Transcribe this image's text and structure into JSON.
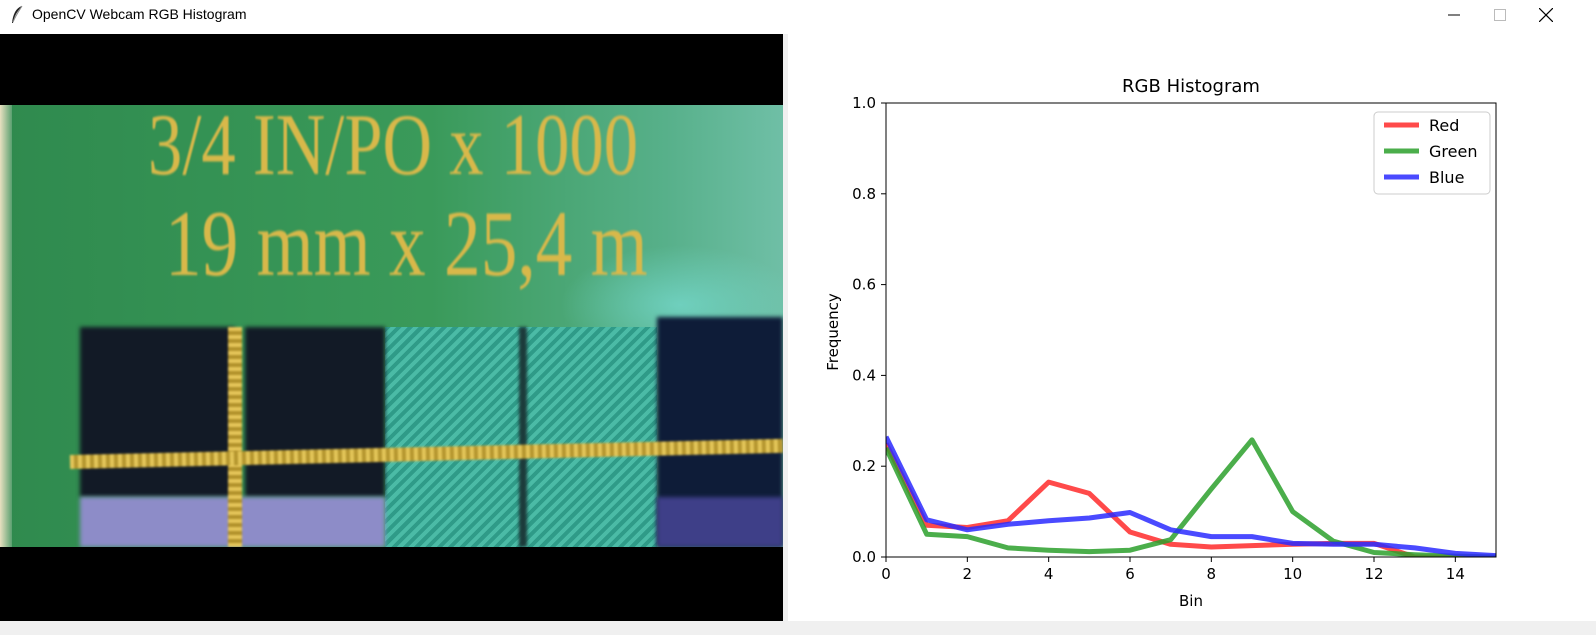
{
  "window": {
    "title": "OpenCV Webcam RGB Histogram",
    "icon": "feather-icon",
    "controls": [
      "minimize-icon",
      "maximize-icon",
      "close-icon"
    ]
  },
  "video": {
    "printed_text_line1": "3/4 IN/PO x 1000",
    "printed_text_line2": "19 mm x 25,4 m"
  },
  "chart_data": {
    "type": "line",
    "title": "RGB Histogram",
    "xlabel": "Bin",
    "ylabel": "Frequency",
    "xlim": [
      0,
      15
    ],
    "ylim": [
      0,
      1.0
    ],
    "xticks": [
      "0",
      "2",
      "4",
      "6",
      "8",
      "10",
      "12",
      "14"
    ],
    "yticks": [
      "0.0",
      "0.2",
      "0.4",
      "0.6",
      "0.8",
      "1.0"
    ],
    "legend_position": "top-right",
    "x": [
      0,
      1,
      2,
      3,
      4,
      5,
      6,
      7,
      8,
      9,
      10,
      11,
      12,
      13,
      14,
      15
    ],
    "series": [
      {
        "name": "Red",
        "color": "#ff2a2a",
        "values": [
          0.25,
          0.07,
          0.065,
          0.08,
          0.165,
          0.14,
          0.055,
          0.028,
          0.022,
          0.025,
          0.028,
          0.03,
          0.03,
          0.0,
          0.0,
          0.0
        ]
      },
      {
        "name": "Green",
        "color": "#2ca02c",
        "values": [
          0.24,
          0.05,
          0.045,
          0.02,
          0.015,
          0.012,
          0.015,
          0.038,
          0.15,
          0.258,
          0.1,
          0.035,
          0.01,
          0.005,
          0.002,
          0.0
        ]
      },
      {
        "name": "Blue",
        "color": "#2a2aff",
        "values": [
          0.265,
          0.082,
          0.06,
          0.072,
          0.08,
          0.086,
          0.098,
          0.06,
          0.045,
          0.045,
          0.03,
          0.028,
          0.028,
          0.02,
          0.008,
          0.003
        ]
      }
    ]
  }
}
